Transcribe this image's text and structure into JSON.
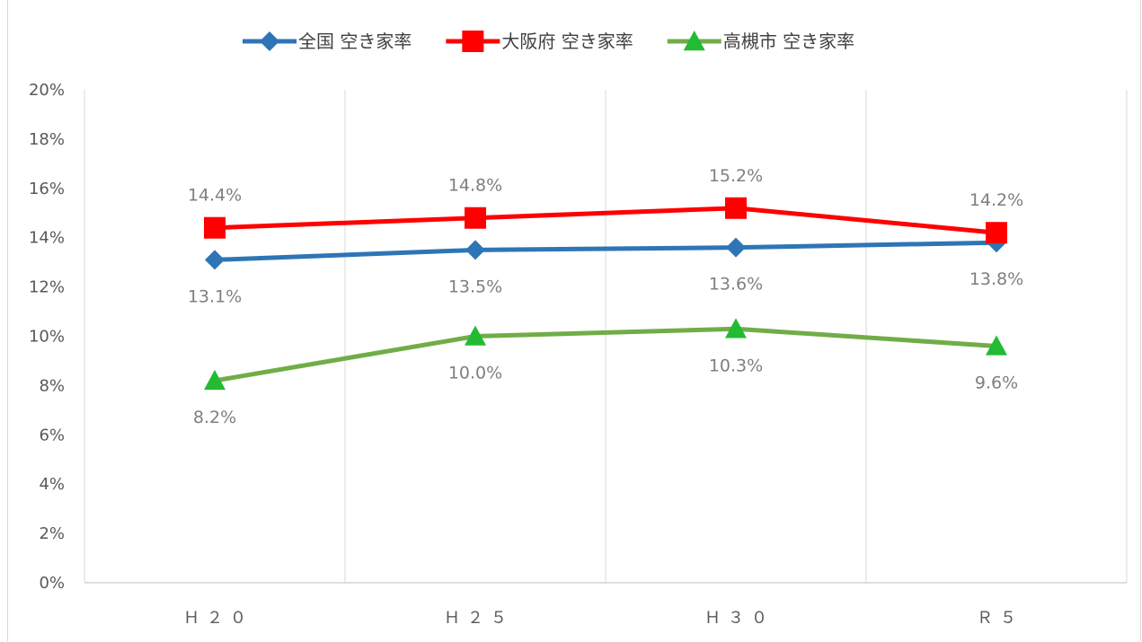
{
  "chart_data": {
    "type": "line",
    "categories": [
      "Ｈ２０",
      "Ｈ２５",
      "Ｈ３０",
      "Ｒ５"
    ],
    "ylim": [
      0,
      20
    ],
    "yticks": [
      0,
      2,
      4,
      6,
      8,
      10,
      12,
      14,
      16,
      18,
      20
    ],
    "ytick_labels": [
      "0%",
      "2%",
      "4%",
      "6%",
      "8%",
      "10%",
      "12%",
      "14%",
      "16%",
      "18%",
      "20%"
    ],
    "grid": "vertical",
    "legend_position": "top",
    "series": [
      {
        "name": "全国 空き家率",
        "color": "#2e75b6",
        "marker": "diamond",
        "values": [
          13.1,
          13.5,
          13.6,
          13.8
        ],
        "labels": [
          "13.1%",
          "13.5%",
          "13.6%",
          "13.8%"
        ],
        "label_position": "below"
      },
      {
        "name": "大阪府 空き家率",
        "color": "#ff0000",
        "marker": "square",
        "values": [
          14.4,
          14.8,
          15.2,
          14.2
        ],
        "labels": [
          "14.4%",
          "14.8%",
          "15.2%",
          "14.2%"
        ],
        "label_position": "above"
      },
      {
        "name": "高槻市 空き家率",
        "color": "#70ad47",
        "marker_color": "#22bb33",
        "marker": "triangle",
        "values": [
          8.2,
          10.0,
          10.3,
          9.6
        ],
        "labels": [
          "8.2%",
          "10.0%",
          "10.3%",
          "9.6%"
        ],
        "label_position": "below"
      }
    ]
  }
}
